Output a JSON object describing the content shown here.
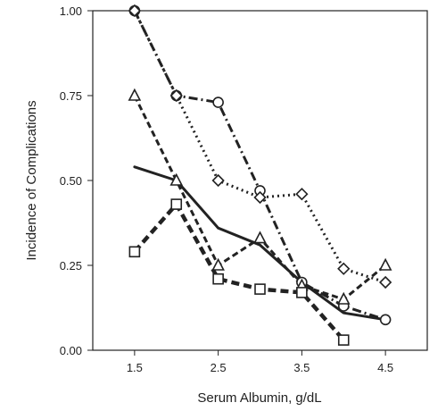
{
  "chart_data": {
    "type": "line",
    "title": "",
    "xlabel": "Serum Albumin, g/dL",
    "ylabel": "Incidence of Complications",
    "xlim": [
      1.0,
      5.0
    ],
    "ylim": [
      0.0,
      1.0
    ],
    "x_ticks": [
      1.5,
      2.5,
      3.5,
      4.5
    ],
    "x_tick_labels": [
      "1.5",
      "2.5",
      "3.5",
      "4.5"
    ],
    "y_ticks": [
      0.0,
      0.25,
      0.5,
      0.75,
      1.0
    ],
    "y_tick_labels": [
      "0.00",
      "0.25",
      "0.50",
      "0.75",
      "1.00"
    ],
    "grid": false,
    "legend": "none",
    "series": [
      {
        "marker": "circle",
        "line_style": "dot-dash",
        "color": "#222222",
        "x": [
          1.5,
          2.0,
          2.5,
          3.0,
          3.5,
          4.0,
          4.5
        ],
        "y": [
          1.0,
          0.75,
          0.73,
          0.47,
          0.2,
          0.13,
          0.09
        ]
      },
      {
        "marker": "diamond",
        "line_style": "dotted",
        "color": "#222222",
        "x": [
          1.5,
          2.0,
          2.5,
          3.0,
          3.5,
          4.0,
          4.5
        ],
        "y": [
          1.0,
          0.75,
          0.5,
          0.45,
          0.46,
          0.24,
          0.2
        ]
      },
      {
        "marker": "triangle",
        "line_style": "dashed",
        "color": "#222222",
        "x": [
          1.5,
          2.0,
          2.5,
          3.0,
          3.5,
          4.0,
          4.5
        ],
        "y": [
          0.75,
          0.5,
          0.25,
          0.33,
          0.19,
          0.15,
          0.25
        ]
      },
      {
        "marker": "square",
        "line_style": "heavy-dashed",
        "color": "#222222",
        "x": [
          1.5,
          2.0,
          2.5,
          3.0,
          3.5,
          4.0
        ],
        "y": [
          0.29,
          0.43,
          0.21,
          0.18,
          0.17,
          0.03
        ]
      },
      {
        "marker": "none",
        "line_style": "solid",
        "color": "#222222",
        "x": [
          1.5,
          2.0,
          2.5,
          3.0,
          3.5,
          4.0,
          4.5
        ],
        "y": [
          0.54,
          0.5,
          0.36,
          0.31,
          0.2,
          0.11,
          0.09
        ]
      }
    ]
  }
}
